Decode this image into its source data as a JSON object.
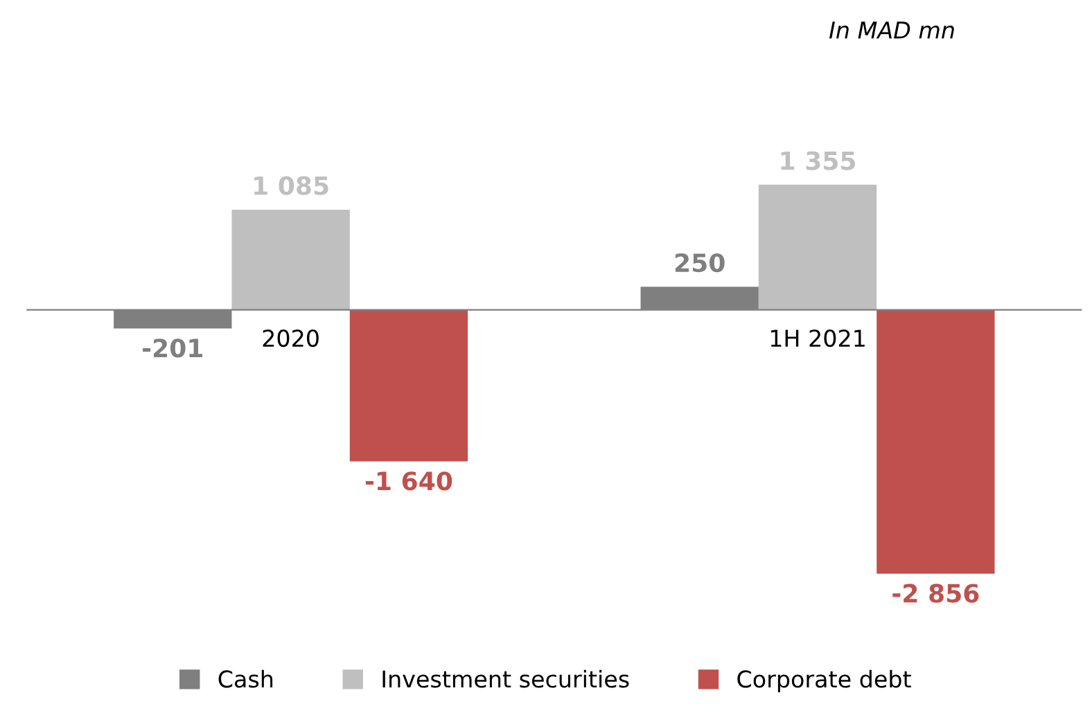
{
  "chart_data": {
    "type": "bar",
    "categories": [
      "2020",
      "1H 2021"
    ],
    "series": [
      {
        "name": "Cash",
        "color": "#7f7f7f",
        "values": [
          -201,
          250
        ],
        "value_labels": [
          "-201",
          "250"
        ]
      },
      {
        "name": "Investment securities",
        "color": "#bfbfbf",
        "values": [
          1085,
          1355
        ],
        "value_labels": [
          "1 085",
          "1 355"
        ]
      },
      {
        "name": "Corporate debt",
        "color": "#c0504d",
        "values": [
          -1640,
          -2856
        ],
        "value_labels": [
          "-1 640",
          "-2 856"
        ]
      }
    ],
    "annotations": [
      "In MAD mn"
    ],
    "legend": "bottom",
    "grid": false
  }
}
